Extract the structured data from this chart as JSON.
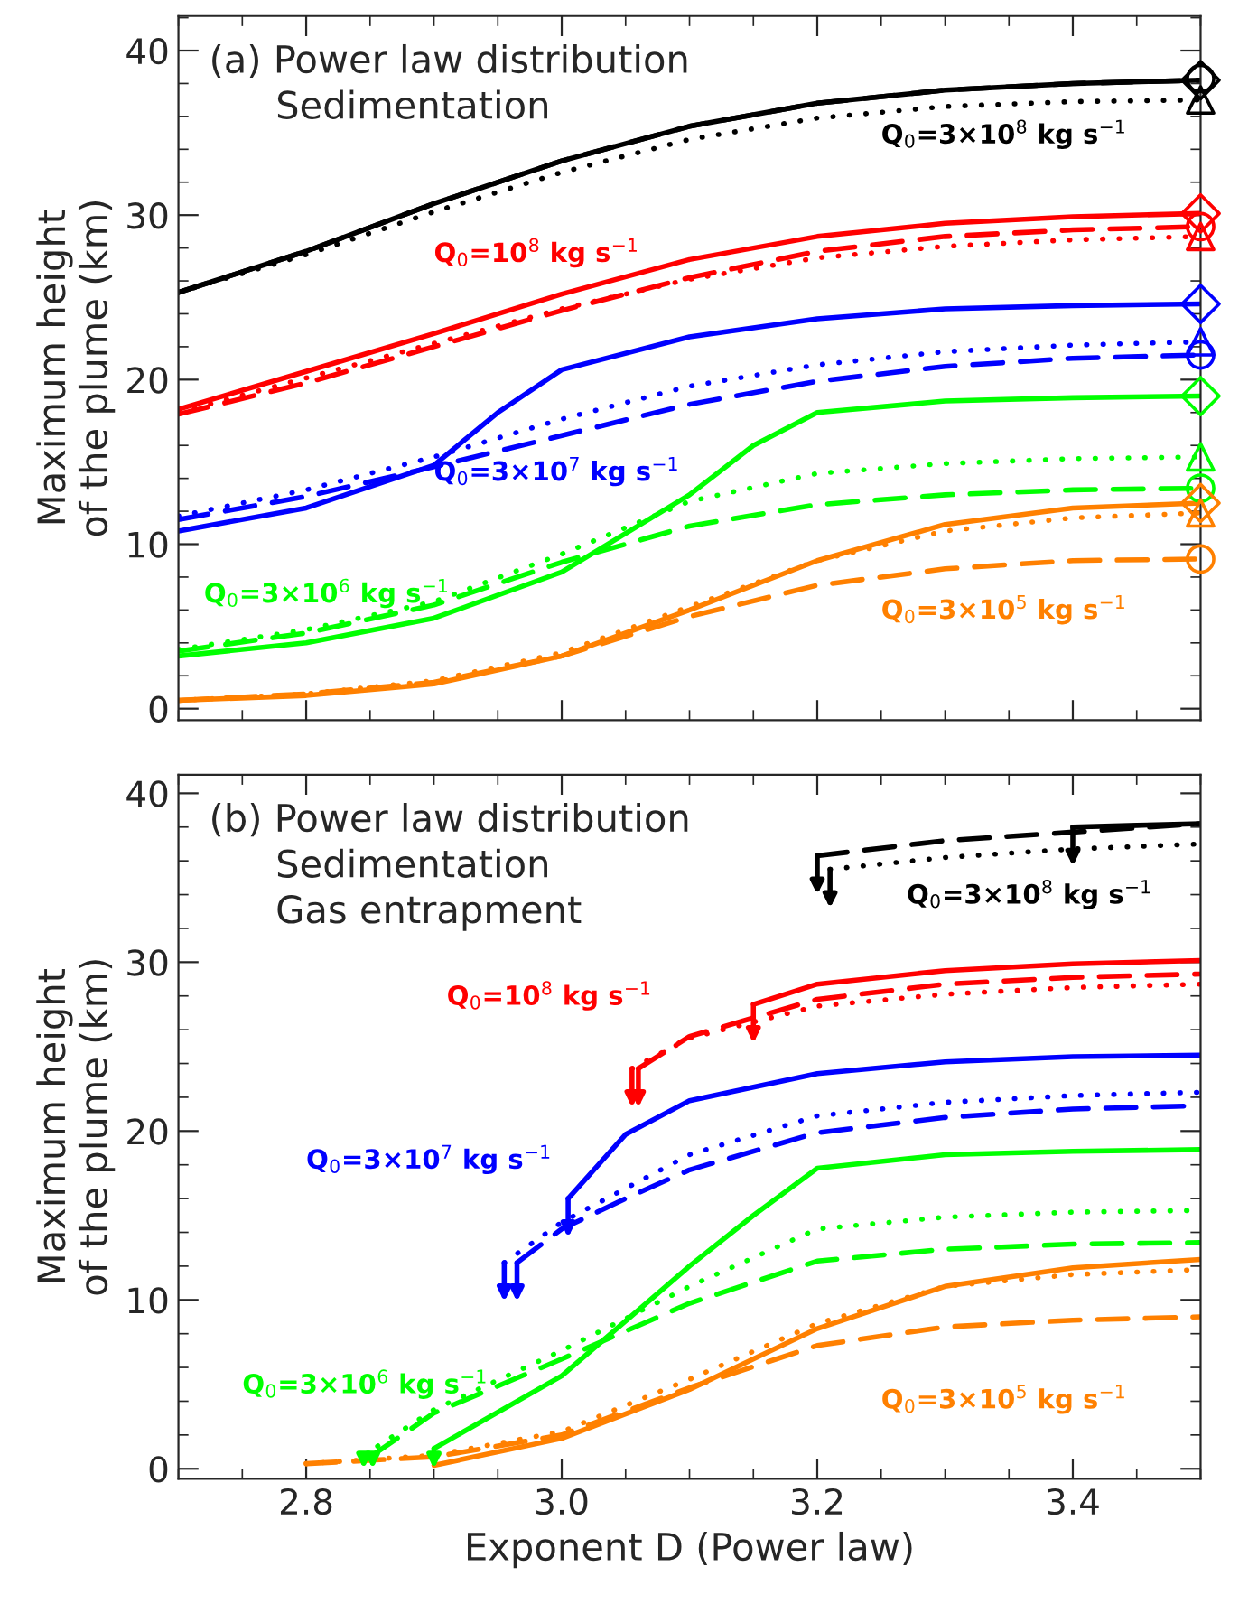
{
  "chart_data": [
    {
      "type": "line",
      "xlim": [
        2.7,
        3.5
      ],
      "xticks": [
        2.8,
        3.0,
        3.2,
        3.4
      ],
      "ylim": [
        -0.7,
        42.1
      ],
      "yticks": [
        0,
        10,
        20,
        30,
        40
      ],
      "tick_labels": "y",
      "ylabel": "Maximum height\nof the plume (km)",
      "grid": false,
      "legend": false,
      "annotations": [
        "(a) Power law distribution",
        "Sedimentation"
      ],
      "series": [
        {
          "name": "Q$_{0}$=3×10$^{8}$ kg s$^{−1}$",
          "color": "#000000",
          "line_style": "dotted",
          "x": [
            2.7,
            2.8,
            2.9,
            3.0,
            3.1,
            3.2,
            3.3,
            3.4,
            3.5
          ],
          "values": [
            25.3,
            27.6,
            30.2,
            32.6,
            34.6,
            35.9,
            36.6,
            36.9,
            37.0
          ]
        },
        {
          "color": "#000000",
          "line_style": "dashed",
          "x": [
            2.7,
            2.8,
            2.9,
            3.0,
            3.1,
            3.2,
            3.3,
            3.4,
            3.5
          ],
          "values": [
            25.3,
            27.8,
            30.7,
            33.3,
            35.4,
            36.8,
            37.6,
            38.0,
            38.2
          ]
        },
        {
          "color": "#000000",
          "line_style": "solid",
          "x": [
            2.7,
            2.8,
            2.9,
            3.0,
            3.1,
            3.2,
            3.3,
            3.4,
            3.5
          ],
          "values": [
            25.3,
            27.8,
            30.7,
            33.3,
            35.4,
            36.8,
            37.6,
            38.0,
            38.2
          ]
        },
        {
          "name": "Q$_{0}$=10$^{8}$ kg s$^{−1}$",
          "color": "#ff0000",
          "line_style": "dotted",
          "x": [
            2.7,
            2.8,
            2.9,
            3.0,
            3.1,
            3.2,
            3.3,
            3.4,
            3.5
          ],
          "values": [
            18.0,
            20.1,
            22.2,
            24.3,
            26.1,
            27.4,
            28.1,
            28.5,
            28.7
          ]
        },
        {
          "color": "#ff0000",
          "line_style": "dashed",
          "x": [
            2.7,
            2.8,
            2.9,
            3.0,
            3.1,
            3.2,
            3.3,
            3.4,
            3.5
          ],
          "values": [
            17.9,
            19.8,
            22.0,
            24.2,
            26.2,
            27.8,
            28.7,
            29.1,
            29.3
          ]
        },
        {
          "color": "#ff0000",
          "line_style": "solid",
          "x": [
            2.7,
            2.8,
            2.9,
            3.0,
            3.1,
            3.2,
            3.3,
            3.4,
            3.5
          ],
          "values": [
            18.2,
            20.5,
            22.8,
            25.2,
            27.3,
            28.7,
            29.5,
            29.9,
            30.1
          ]
        },
        {
          "name": "Q$_{0}$=3×10$^{7}$ kg s$^{−1}$",
          "color": "#0000ff",
          "line_style": "dotted",
          "x": [
            2.7,
            2.8,
            2.9,
            3.0,
            3.1,
            3.2,
            3.3,
            3.4,
            3.5
          ],
          "values": [
            11.7,
            13.3,
            15.3,
            17.6,
            19.6,
            20.9,
            21.7,
            22.1,
            22.3
          ]
        },
        {
          "color": "#0000ff",
          "line_style": "dashed",
          "x": [
            2.7,
            2.8,
            2.9,
            3.0,
            3.1,
            3.2,
            3.3,
            3.4,
            3.5
          ],
          "values": [
            11.5,
            12.9,
            14.7,
            16.6,
            18.5,
            19.9,
            20.8,
            21.3,
            21.5
          ]
        },
        {
          "color": "#0000ff",
          "line_style": "solid",
          "x": [
            2.7,
            2.8,
            2.9,
            2.95,
            3.0,
            3.1,
            3.2,
            3.3,
            3.4,
            3.5
          ],
          "values": [
            10.8,
            12.2,
            14.8,
            18.0,
            20.6,
            22.6,
            23.7,
            24.3,
            24.5,
            24.6
          ]
        },
        {
          "name": "Q$_{0}$=3×10$^{6}$ kg s$^{−1}$",
          "color": "#00ff00",
          "line_style": "dotted",
          "x": [
            2.7,
            2.8,
            2.9,
            3.0,
            3.1,
            3.2,
            3.3,
            3.4,
            3.5
          ],
          "values": [
            3.6,
            4.8,
            6.5,
            9.4,
            12.6,
            14.3,
            14.9,
            15.2,
            15.3
          ]
        },
        {
          "color": "#00ff00",
          "line_style": "dashed",
          "x": [
            2.7,
            2.8,
            2.9,
            3.0,
            3.1,
            3.2,
            3.3,
            3.4,
            3.5
          ],
          "values": [
            3.5,
            4.6,
            6.3,
            8.9,
            11.1,
            12.4,
            13.0,
            13.3,
            13.4
          ]
        },
        {
          "color": "#00ff00",
          "line_style": "solid",
          "x": [
            2.7,
            2.8,
            2.9,
            3.0,
            3.1,
            3.15,
            3.2,
            3.3,
            3.4,
            3.5
          ],
          "values": [
            3.2,
            4.0,
            5.5,
            8.3,
            13.0,
            16.0,
            18.0,
            18.7,
            18.9,
            19.0
          ]
        },
        {
          "name": "Q$_{0}$=3×10$^{5}$ kg s$^{−1}$",
          "color": "#ff8000",
          "line_style": "dotted",
          "x": [
            2.7,
            2.8,
            2.9,
            3.0,
            3.1,
            3.2,
            3.3,
            3.4,
            3.5
          ],
          "values": [
            0.5,
            0.9,
            1.7,
            3.4,
            6.2,
            9.0,
            10.8,
            11.6,
            11.9
          ]
        },
        {
          "color": "#ff8000",
          "line_style": "dashed",
          "x": [
            2.7,
            2.8,
            2.9,
            3.0,
            3.1,
            3.2,
            3.3,
            3.4,
            3.5
          ],
          "values": [
            0.5,
            0.9,
            1.6,
            3.2,
            5.6,
            7.5,
            8.5,
            9.0,
            9.1
          ]
        },
        {
          "color": "#ff8000",
          "line_style": "solid",
          "x": [
            2.7,
            2.8,
            2.9,
            3.0,
            3.1,
            3.2,
            3.3,
            3.4,
            3.5
          ],
          "values": [
            0.5,
            0.8,
            1.5,
            3.2,
            6.0,
            9.0,
            11.2,
            12.2,
            12.5
          ]
        },
        {
          "type": "scatter",
          "color": "#000000",
          "marker": "diamond",
          "x": [
            3.5
          ],
          "values": [
            38.2
          ]
        },
        {
          "type": "scatter",
          "color": "#000000",
          "marker": "circle",
          "x": [
            3.5
          ],
          "values": [
            38.3
          ]
        },
        {
          "type": "scatter",
          "color": "#000000",
          "marker": "triangle",
          "x": [
            3.5
          ],
          "values": [
            37.0
          ]
        },
        {
          "type": "scatter",
          "color": "#ff0000",
          "marker": "diamond",
          "x": [
            3.5
          ],
          "values": [
            30.1
          ]
        },
        {
          "type": "scatter",
          "color": "#ff0000",
          "marker": "circle",
          "x": [
            3.5
          ],
          "values": [
            29.3
          ]
        },
        {
          "type": "scatter",
          "color": "#ff0000",
          "marker": "triangle",
          "x": [
            3.5
          ],
          "values": [
            28.7
          ]
        },
        {
          "type": "scatter",
          "color": "#0000ff",
          "marker": "diamond",
          "x": [
            3.5
          ],
          "values": [
            24.6
          ]
        },
        {
          "type": "scatter",
          "color": "#0000ff",
          "marker": "circle",
          "x": [
            3.5
          ],
          "values": [
            21.5
          ]
        },
        {
          "type": "scatter",
          "color": "#0000ff",
          "marker": "triangle",
          "x": [
            3.5
          ],
          "values": [
            22.3
          ]
        },
        {
          "type": "scatter",
          "color": "#00ff00",
          "marker": "diamond",
          "x": [
            3.5
          ],
          "values": [
            19.0
          ]
        },
        {
          "type": "scatter",
          "color": "#00ff00",
          "marker": "circle",
          "x": [
            3.5
          ],
          "values": [
            13.4
          ]
        },
        {
          "type": "scatter",
          "color": "#00ff00",
          "marker": "triangle",
          "x": [
            3.5
          ],
          "values": [
            15.3
          ]
        },
        {
          "type": "scatter",
          "color": "#ff8000",
          "marker": "diamond",
          "x": [
            3.5
          ],
          "values": [
            12.5
          ]
        },
        {
          "type": "scatter",
          "color": "#ff8000",
          "marker": "circle",
          "x": [
            3.5
          ],
          "values": [
            9.1
          ]
        },
        {
          "type": "scatter",
          "color": "#ff8000",
          "marker": "triangle",
          "x": [
            3.5
          ],
          "values": [
            11.9
          ]
        }
      ]
    },
    {
      "type": "line",
      "xlim": [
        2.7,
        3.5
      ],
      "xticks": [
        2.8,
        {
          "value": 3.0,
          "label": "3.0"
        },
        3.2,
        3.4
      ],
      "ylim": [
        -0.6,
        41.1
      ],
      "yticks": [
        0,
        10,
        20,
        30,
        40
      ],
      "xlabel": "Exponent D (Power law)",
      "ylabel": "Maximum height\nof the plume (km)",
      "grid": false,
      "legend": false,
      "annotations": [
        "(b) Power law distribution",
        "Sedimentation",
        "Gas entrapment"
      ],
      "series": [
        {
          "name": "Q$_{0}$=3×10$^{8}$ kg s$^{−1}$",
          "color": "#000000",
          "line_style": "dotted",
          "x": [
            3.21,
            3.3,
            3.4,
            3.5
          ],
          "values": [
            35.5,
            36.2,
            36.7,
            37.0
          ]
        },
        {
          "color": "#000000",
          "line_style": "dashed",
          "x": [
            3.2,
            3.3,
            3.4,
            3.5
          ],
          "values": [
            36.3,
            37.2,
            37.7,
            38.2
          ]
        },
        {
          "color": "#000000",
          "line_style": "solid",
          "x": [
            3.4,
            3.45,
            3.5
          ],
          "values": [
            38.0,
            38.1,
            38.2
          ]
        },
        {
          "color": "#ff0000",
          "line_style": "dotted",
          "x": [
            3.055,
            3.1,
            3.2,
            3.3,
            3.4,
            3.5
          ],
          "values": [
            23.7,
            25.5,
            27.4,
            28.1,
            28.5,
            28.7
          ]
        },
        {
          "color": "#ff0000",
          "line_style": "dashed",
          "x": [
            3.06,
            3.1,
            3.2,
            3.3,
            3.4,
            3.5
          ],
          "values": [
            23.7,
            25.6,
            27.8,
            28.7,
            29.1,
            29.3
          ]
        },
        {
          "name": "Q$_{0}$=10$^{8}$ kg s$^{−1}$",
          "color": "#ff0000",
          "line_style": "solid",
          "x": [
            3.15,
            3.2,
            3.3,
            3.4,
            3.5
          ],
          "values": [
            27.5,
            28.7,
            29.5,
            29.9,
            30.1
          ]
        },
        {
          "name": "Q$_{0}$=3×10$^{7}$ kg s$^{−1}$",
          "color": "#0000ff",
          "line_style": "dotted",
          "x": [
            2.955,
            3.0,
            3.1,
            3.2,
            3.3,
            3.4,
            3.5
          ],
          "values": [
            12.2,
            14.6,
            18.6,
            20.9,
            21.7,
            22.1,
            22.3
          ]
        },
        {
          "color": "#0000ff",
          "line_style": "dashed",
          "x": [
            2.965,
            3.0,
            3.05,
            3.1,
            3.2,
            3.3,
            3.4,
            3.5
          ],
          "values": [
            12.2,
            14.2,
            16.0,
            17.7,
            19.9,
            20.8,
            21.3,
            21.5
          ]
        },
        {
          "color": "#0000ff",
          "line_style": "solid",
          "x": [
            3.005,
            3.05,
            3.1,
            3.2,
            3.3,
            3.4,
            3.5
          ],
          "values": [
            16.0,
            19.8,
            21.8,
            23.4,
            24.1,
            24.4,
            24.5
          ]
        },
        {
          "name": "Q$_{0}$=3×10$^{6}$ kg s$^{−1}$",
          "color": "#00ff00",
          "line_style": "dotted",
          "x": [
            2.845,
            2.9,
            3.0,
            3.1,
            3.2,
            3.3,
            3.4,
            3.5
          ],
          "values": [
            0.8,
            3.5,
            7.0,
            10.8,
            14.2,
            14.9,
            15.2,
            15.3
          ]
        },
        {
          "color": "#00ff00",
          "line_style": "dashed",
          "x": [
            2.852,
            2.9,
            3.0,
            3.1,
            3.2,
            3.3,
            3.4,
            3.5
          ],
          "values": [
            0.8,
            3.3,
            6.5,
            9.8,
            12.3,
            13.0,
            13.3,
            13.4
          ]
        },
        {
          "color": "#00ff00",
          "line_style": "solid",
          "x": [
            2.9,
            3.0,
            3.1,
            3.15,
            3.2,
            3.3,
            3.4,
            3.5
          ],
          "values": [
            1.2,
            5.5,
            12.0,
            15.0,
            17.8,
            18.6,
            18.8,
            18.9
          ]
        },
        {
          "name": "Q$_{0}$=3×10$^{5}$ kg s$^{−1}$",
          "color": "#ff8000",
          "line_style": "dotted",
          "x": [
            2.8,
            2.9,
            3.0,
            3.1,
            3.2,
            3.3,
            3.4,
            3.5
          ],
          "values": [
            0.3,
            0.8,
            2.2,
            5.3,
            8.6,
            10.8,
            11.5,
            11.8
          ]
        },
        {
          "color": "#ff8000",
          "line_style": "dashed",
          "x": [
            2.8,
            2.9,
            3.0,
            3.1,
            3.2,
            3.3,
            3.4,
            3.5
          ],
          "values": [
            0.3,
            0.7,
            2.0,
            4.8,
            7.3,
            8.4,
            8.8,
            9.0
          ]
        },
        {
          "color": "#ff8000",
          "line_style": "solid",
          "x": [
            2.9,
            3.0,
            3.1,
            3.2,
            3.3,
            3.4,
            3.5
          ],
          "values": [
            0.2,
            1.8,
            4.7,
            8.3,
            10.8,
            11.9,
            12.4
          ]
        }
      ]
    }
  ]
}
